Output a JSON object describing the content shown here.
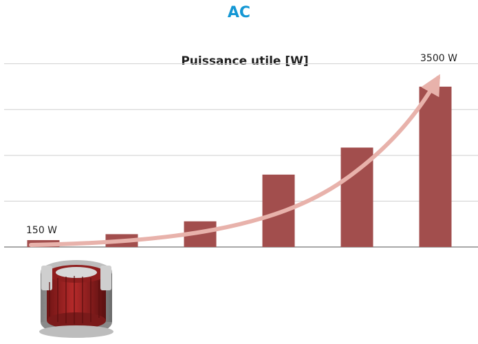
{
  "heading": "AC",
  "chart_data": {
    "type": "bar",
    "title": "Puissance utile [W]",
    "categories": [
      "",
      "",
      "",
      "",
      "",
      ""
    ],
    "values": [
      150,
      280,
      560,
      1580,
      2170,
      3500
    ],
    "ylim": [
      0,
      4250
    ],
    "grid": true,
    "legend": "none",
    "annotations": [
      "150 W",
      "3500 W"
    ],
    "colors": {
      "bar": "#a24e4d",
      "arrow": "#e8b2ab",
      "grid": "#cfcfcf",
      "axis": "#8c8c8c",
      "heading": "#1497d4"
    }
  },
  "icons": {
    "motor": "electric-motor-icon"
  }
}
